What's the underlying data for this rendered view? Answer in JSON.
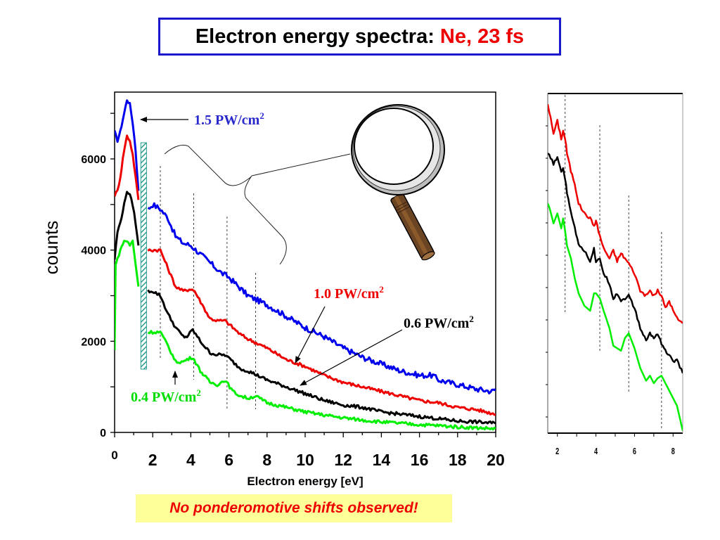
{
  "title": {
    "main": "Electron energy spectra:",
    "highlight": "Ne, 23 fs",
    "main_color": "#000000",
    "highlight_color": "#ee0000",
    "border_color": "#1a1acc"
  },
  "note": {
    "text": "No ponderomotive shifts observed!",
    "background": "#ffff99",
    "color": "#ee0000"
  },
  "chart_data": [
    {
      "type": "line",
      "title": "Electron energy spectra: Ne, 23 fs",
      "xlabel": "Electron energy [eV]",
      "ylabel": "counts",
      "xlim": [
        0,
        20
      ],
      "ylim": [
        0,
        7500
      ],
      "x_ticks": [
        0,
        2,
        4,
        6,
        8,
        10,
        12,
        14,
        16,
        18,
        20
      ],
      "x_tick_labels": [
        "0",
        "2",
        "4",
        "6",
        "8",
        "10",
        "12",
        "14",
        "16",
        "18",
        "20"
      ],
      "y_ticks": [
        0,
        2000,
        4000,
        6000
      ],
      "y_tick_labels": [
        "0",
        "2000",
        "4000",
        "6000"
      ],
      "grid": false,
      "excluded_region_eV": [
        1.45,
        1.75
      ],
      "marker_lines_eV": [
        2.4,
        4.15,
        5.9,
        7.4
      ],
      "series": [
        {
          "name": "1.5 PW/cm²",
          "label": "1.5 PW/cm",
          "color": "#0000ee",
          "x": [
            0,
            0.15,
            0.3,
            0.5,
            0.65,
            0.8,
            0.95,
            1.1,
            1.25,
            1.75,
            2.0,
            2.4,
            2.8,
            3.2,
            3.6,
            4.0,
            4.4,
            4.8,
            5.2,
            5.6,
            6.0,
            6.5,
            7.0,
            7.5,
            8.0,
            9.0,
            10.0,
            11.0,
            12.0,
            13.0,
            14.0,
            15.0,
            16.0,
            16.7,
            17.0,
            18.0,
            19.0,
            19.8,
            20.0
          ],
          "y": [
            6600,
            6400,
            6600,
            7000,
            7300,
            7200,
            6800,
            6200,
            5300,
            4900,
            5000,
            4900,
            4700,
            4300,
            4150,
            4100,
            3950,
            3800,
            3650,
            3500,
            3400,
            3200,
            3000,
            2900,
            2800,
            2550,
            2300,
            2100,
            1850,
            1650,
            1500,
            1350,
            1250,
            1250,
            1150,
            1050,
            950,
            900,
            950
          ]
        },
        {
          "name": "1.0 PW/cm²",
          "label": "1.0 PW/cm",
          "color": "#ee0000",
          "x": [
            0,
            0.15,
            0.3,
            0.5,
            0.65,
            0.8,
            0.95,
            1.1,
            1.25,
            1.75,
            2.0,
            2.4,
            2.8,
            3.2,
            3.6,
            4.0,
            4.2,
            4.6,
            5.0,
            5.4,
            5.8,
            6.2,
            6.6,
            7.0,
            7.5,
            8.0,
            9.0,
            10.0,
            11.0,
            12.0,
            13.0,
            14.0,
            15.0,
            16.0,
            17.0,
            18.0,
            19.0,
            20.0
          ],
          "y": [
            5200,
            5300,
            5600,
            6200,
            6500,
            6400,
            6100,
            5600,
            5100,
            4000,
            4000,
            4000,
            3600,
            3200,
            3100,
            3150,
            3100,
            2800,
            2500,
            2450,
            2450,
            2300,
            2150,
            2050,
            1950,
            1850,
            1600,
            1450,
            1250,
            1100,
            1000,
            900,
            800,
            700,
            650,
            550,
            500,
            400
          ]
        },
        {
          "name": "0.6 PW/cm²",
          "label": "0.6 PW/cm",
          "color": "#000000",
          "x": [
            0,
            0.15,
            0.3,
            0.5,
            0.65,
            0.8,
            0.95,
            1.1,
            1.25,
            1.75,
            2.0,
            2.4,
            2.8,
            3.2,
            3.6,
            3.8,
            4.1,
            4.5,
            5.0,
            5.4,
            5.8,
            6.2,
            6.6,
            7.0,
            7.5,
            8.0,
            9.0,
            10.0,
            11.0,
            12.0,
            13.0,
            14.0,
            15.0,
            16.0,
            17.0,
            18.0,
            19.0,
            20.0
          ],
          "y": [
            3800,
            4400,
            4600,
            5000,
            5300,
            5200,
            5000,
            4600,
            4100,
            3100,
            3100,
            3000,
            2600,
            2300,
            2100,
            2100,
            2250,
            2000,
            1750,
            1700,
            1700,
            1550,
            1400,
            1350,
            1250,
            1150,
            1000,
            850,
            700,
            600,
            550,
            450,
            400,
            350,
            300,
            250,
            230,
            200
          ]
        },
        {
          "name": "0.4 PW/cm²",
          "label": "0.4 PW/cm",
          "color": "#00ee00",
          "x": [
            0,
            0.05,
            0.15,
            0.3,
            0.5,
            0.65,
            0.8,
            0.95,
            1.1,
            1.25,
            1.75,
            2.0,
            2.4,
            2.8,
            3.2,
            3.6,
            3.8,
            4.1,
            4.5,
            5.0,
            5.4,
            5.8,
            6.2,
            6.6,
            7.0,
            7.4,
            8.0,
            9.0,
            10.0,
            11.0,
            12.0,
            13.0,
            14.0,
            15.0,
            16.0,
            17.0,
            18.0,
            19.0,
            20.0
          ],
          "y": [
            1800,
            3700,
            3800,
            4000,
            4200,
            4200,
            4100,
            4200,
            3700,
            3200,
            2200,
            2200,
            2200,
            1900,
            1550,
            1550,
            1600,
            1650,
            1350,
            1100,
            1050,
            1150,
            900,
            800,
            750,
            800,
            650,
            550,
            450,
            380,
            320,
            270,
            230,
            200,
            170,
            150,
            120,
            100,
            80
          ]
        }
      ],
      "annotations": [
        {
          "text": "1.5 PW/cm",
          "sup": "2",
          "color": "#2a2acc",
          "points_to": "1.5 PW/cm² peak"
        },
        {
          "text": "1.0 PW/cm",
          "sup": "2",
          "color": "#ee0000",
          "points_to": "1.0 PW/cm² curve"
        },
        {
          "text": "0.6 PW/cm",
          "sup": "2",
          "color": "#000000",
          "points_to": "0.6 PW/cm² curve"
        },
        {
          "text": "0.4 PW/cm",
          "sup": "2",
          "color": "#00dd00",
          "points_to": "0.4 PW/cm² curve"
        }
      ]
    },
    {
      "type": "line",
      "title": "zoomed inset",
      "xlim": [
        1.5,
        8.5
      ],
      "x_ticks": [
        2,
        4,
        6,
        8
      ],
      "x_tick_labels": [
        "2",
        "4",
        "6",
        "8"
      ],
      "y_minor_ticks": 10,
      "marker_lines_eV": [
        2.4,
        4.2,
        5.7,
        7.4
      ],
      "series": [
        {
          "name": "1.0 PW/cm²",
          "color": "#ee0000",
          "x": [
            1.5,
            1.8,
            2.0,
            2.2,
            2.3,
            2.4,
            2.5,
            2.7,
            2.9,
            3.1,
            3.4,
            3.7,
            3.9,
            4.0,
            4.2,
            4.4,
            4.7,
            4.9,
            5.1,
            5.3,
            5.5,
            5.7,
            6.0,
            6.3,
            6.6,
            6.8,
            7.0,
            7.2,
            7.4,
            7.6,
            7.8,
            8.0,
            8.2,
            8.5
          ],
          "y": [
            100,
            88,
            93,
            86,
            89,
            86,
            80,
            73,
            68,
            60,
            56,
            54,
            51,
            53,
            47,
            42,
            38,
            41,
            37,
            40,
            38,
            36,
            32,
            25,
            23,
            25,
            23,
            25,
            23,
            18,
            21,
            17,
            14,
            12
          ]
        },
        {
          "name": "0.6 PW/cm²",
          "color": "#000000",
          "x": [
            1.5,
            1.8,
            2.0,
            2.2,
            2.3,
            2.4,
            2.5,
            2.7,
            2.9,
            3.1,
            3.4,
            3.7,
            3.9,
            4.0,
            4.2,
            4.4,
            4.7,
            4.9,
            5.1,
            5.3,
            5.5,
            5.7,
            6.0,
            6.3,
            6.6,
            6.8,
            7.0,
            7.2,
            7.4,
            7.6,
            7.8,
            8.0,
            8.2,
            8.5
          ],
          "y": [
            80,
            76,
            78,
            73,
            74,
            70,
            64,
            57,
            50,
            44,
            41,
            37,
            42,
            36,
            38,
            32,
            28,
            22,
            24,
            21,
            22,
            23,
            18,
            10,
            5,
            8,
            6,
            8,
            4,
            1,
            -1,
            -3,
            -3,
            -8
          ]
        },
        {
          "name": "0.4 PW/cm²",
          "color": "#00ee00",
          "x": [
            1.5,
            1.6,
            1.8,
            2.0,
            2.2,
            2.3,
            2.4,
            2.5,
            2.7,
            2.9,
            3.1,
            3.4,
            3.7,
            3.9,
            4.0,
            4.2,
            4.4,
            4.7,
            4.9,
            5.1,
            5.3,
            5.5,
            5.7,
            6.0,
            6.3,
            6.6,
            6.8,
            7.0,
            7.2,
            7.4,
            7.6,
            7.8,
            8.0,
            8.2,
            8.5
          ],
          "y": [
            60,
            58,
            52,
            56,
            50,
            54,
            49,
            43,
            38,
            30,
            24,
            19,
            17,
            24,
            24,
            22,
            17,
            10,
            3,
            2,
            1,
            6,
            8,
            2,
            -6,
            -11,
            -9,
            -12,
            -10,
            -9,
            -12,
            -15,
            -18,
            -21,
            -31
          ]
        }
      ]
    }
  ],
  "inset_ylim": [
    -32,
    104
  ]
}
